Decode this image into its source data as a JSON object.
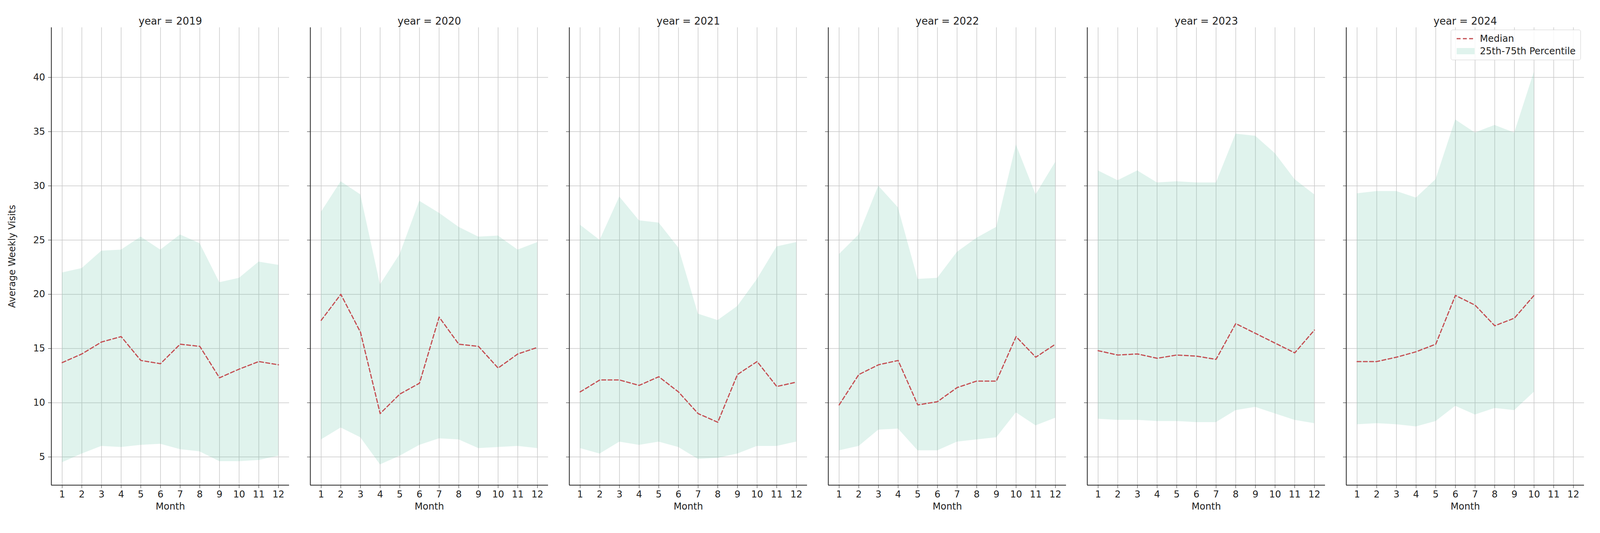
{
  "chart_data": [
    {
      "type": "line",
      "title": "year = 2019",
      "xlabel": "Month",
      "ylabel": "Average Weekly Visits",
      "x": [
        1,
        2,
        3,
        4,
        5,
        6,
        7,
        8,
        9,
        10,
        11,
        12
      ],
      "xlim": [
        0.45,
        12.55
      ],
      "xticks": [
        1,
        2,
        3,
        4,
        5,
        6,
        7,
        8,
        9,
        10,
        11,
        12
      ],
      "ylim": [
        2.4,
        44.6
      ],
      "yticks": [
        5,
        10,
        15,
        20,
        25,
        30,
        35,
        40
      ],
      "grid": true,
      "series": [
        {
          "name": "Median",
          "type": "line",
          "color": "#c44e52",
          "line_style": "dashed",
          "values": [
            13.7,
            14.5,
            15.6,
            16.1,
            13.9,
            13.6,
            15.4,
            15.2,
            12.3,
            13.1,
            13.8,
            13.5
          ]
        },
        {
          "name": "25th-75th Percentile",
          "type": "area",
          "color": "#66c2a5",
          "lower": [
            4.5,
            5.3,
            6.0,
            5.9,
            6.1,
            6.2,
            5.7,
            5.5,
            4.6,
            4.6,
            4.7,
            5.1
          ],
          "upper": [
            22.0,
            22.4,
            24.0,
            24.1,
            25.3,
            24.1,
            25.5,
            24.7,
            21.1,
            21.5,
            23.0,
            22.7
          ]
        }
      ]
    },
    {
      "type": "line",
      "title": "year = 2020",
      "xlabel": "Month",
      "tick_labels": "x",
      "x": [
        1,
        2,
        3,
        4,
        5,
        6,
        7,
        8,
        9,
        10,
        11,
        12
      ],
      "xlim": [
        0.45,
        12.55
      ],
      "xticks": [
        1,
        2,
        3,
        4,
        5,
        6,
        7,
        8,
        9,
        10,
        11,
        12
      ],
      "ylim": [
        2.4,
        44.6
      ],
      "yticks": [
        5,
        10,
        15,
        20,
        25,
        30,
        35,
        40
      ],
      "grid": true,
      "series": [
        {
          "name": "Median",
          "type": "line",
          "color": "#c44e52",
          "line_style": "dashed",
          "values": [
            17.6,
            20.0,
            16.5,
            9.0,
            10.8,
            11.8,
            17.9,
            15.4,
            15.2,
            13.2,
            14.5,
            15.1
          ]
        },
        {
          "name": "25th-75th Percentile",
          "type": "area",
          "color": "#66c2a5",
          "lower": [
            6.6,
            7.7,
            6.8,
            4.3,
            5.1,
            6.1,
            6.7,
            6.6,
            5.8,
            5.9,
            6.0,
            5.8
          ],
          "upper": [
            27.6,
            30.4,
            29.2,
            20.9,
            23.7,
            28.6,
            27.5,
            26.2,
            25.3,
            25.4,
            24.1,
            24.8
          ]
        }
      ]
    },
    {
      "type": "line",
      "title": "year = 2021",
      "xlabel": "Month",
      "tick_labels": "x",
      "x": [
        1,
        2,
        3,
        4,
        5,
        6,
        7,
        8,
        9,
        10,
        11,
        12
      ],
      "xlim": [
        0.45,
        12.55
      ],
      "xticks": [
        1,
        2,
        3,
        4,
        5,
        6,
        7,
        8,
        9,
        10,
        11,
        12
      ],
      "ylim": [
        2.4,
        44.6
      ],
      "yticks": [
        5,
        10,
        15,
        20,
        25,
        30,
        35,
        40
      ],
      "grid": true,
      "series": [
        {
          "name": "Median",
          "type": "line",
          "color": "#c44e52",
          "line_style": "dashed",
          "values": [
            11.0,
            12.1,
            12.1,
            11.6,
            12.4,
            11.0,
            9.0,
            8.2,
            12.6,
            13.8,
            11.5,
            11.9
          ]
        },
        {
          "name": "25th-75th Percentile",
          "type": "area",
          "color": "#66c2a5",
          "lower": [
            5.8,
            5.3,
            6.4,
            6.1,
            6.4,
            5.9,
            4.8,
            4.9,
            5.3,
            6.0,
            6.0,
            6.4
          ],
          "upper": [
            26.4,
            25.0,
            29.0,
            26.8,
            26.6,
            24.3,
            18.2,
            17.6,
            18.9,
            21.4,
            24.4,
            24.8
          ]
        }
      ]
    },
    {
      "type": "line",
      "title": "year = 2022",
      "xlabel": "Month",
      "tick_labels": "x",
      "x": [
        1,
        2,
        3,
        4,
        5,
        6,
        7,
        8,
        9,
        10,
        11,
        12
      ],
      "xlim": [
        0.45,
        12.55
      ],
      "xticks": [
        1,
        2,
        3,
        4,
        5,
        6,
        7,
        8,
        9,
        10,
        11,
        12
      ],
      "ylim": [
        2.4,
        44.6
      ],
      "yticks": [
        5,
        10,
        15,
        20,
        25,
        30,
        35,
        40
      ],
      "grid": true,
      "series": [
        {
          "name": "Median",
          "type": "line",
          "color": "#c44e52",
          "line_style": "dashed",
          "values": [
            9.8,
            12.6,
            13.5,
            13.9,
            9.8,
            10.1,
            11.4,
            12.0,
            12.0,
            16.1,
            14.2,
            15.4
          ]
        },
        {
          "name": "25th-75th Percentile",
          "type": "area",
          "color": "#66c2a5",
          "lower": [
            5.6,
            6.0,
            7.5,
            7.6,
            5.6,
            5.6,
            6.4,
            6.6,
            6.8,
            9.1,
            7.9,
            8.6
          ],
          "upper": [
            23.7,
            25.5,
            30.0,
            28.0,
            21.4,
            21.5,
            23.9,
            25.2,
            26.2,
            33.8,
            29.2,
            32.2
          ]
        }
      ]
    },
    {
      "type": "line",
      "title": "year = 2023",
      "xlabel": "Month",
      "tick_labels": "x",
      "x": [
        1,
        2,
        3,
        4,
        5,
        6,
        7,
        8,
        9,
        10,
        11,
        12
      ],
      "xlim": [
        0.45,
        12.55
      ],
      "xticks": [
        1,
        2,
        3,
        4,
        5,
        6,
        7,
        8,
        9,
        10,
        11,
        12
      ],
      "ylim": [
        2.4,
        44.6
      ],
      "yticks": [
        5,
        10,
        15,
        20,
        25,
        30,
        35,
        40
      ],
      "grid": true,
      "series": [
        {
          "name": "Median",
          "type": "line",
          "color": "#c44e52",
          "line_style": "dashed",
          "values": [
            14.8,
            14.4,
            14.5,
            14.1,
            14.4,
            14.3,
            14.0,
            17.3,
            16.4,
            15.5,
            14.6,
            16.7
          ]
        },
        {
          "name": "25th-75th Percentile",
          "type": "area",
          "color": "#66c2a5",
          "lower": [
            8.5,
            8.4,
            8.4,
            8.3,
            8.3,
            8.2,
            8.2,
            9.3,
            9.6,
            9.0,
            8.4,
            8.1
          ],
          "upper": [
            31.4,
            30.5,
            31.4,
            30.3,
            30.4,
            30.3,
            30.3,
            34.8,
            34.6,
            33.0,
            30.6,
            29.2
          ]
        }
      ]
    },
    {
      "type": "line",
      "title": "year = 2024",
      "xlabel": "Month",
      "tick_labels": "x",
      "legend": "upper right",
      "x": [
        1,
        2,
        3,
        4,
        5,
        6,
        7,
        8,
        9,
        10
      ],
      "xlim": [
        0.45,
        12.55
      ],
      "xticks": [
        1,
        2,
        3,
        4,
        5,
        6,
        7,
        8,
        9,
        10,
        11,
        12
      ],
      "ylim": [
        2.4,
        44.6
      ],
      "yticks": [
        5,
        10,
        15,
        20,
        25,
        30,
        35,
        40
      ],
      "grid": true,
      "series": [
        {
          "name": "Median",
          "type": "line",
          "color": "#c44e52",
          "line_style": "dashed",
          "values": [
            13.8,
            13.8,
            14.2,
            14.7,
            15.4,
            19.9,
            19.0,
            17.1,
            17.8,
            19.9
          ]
        },
        {
          "name": "25th-75th Percentile",
          "type": "area",
          "color": "#66c2a5",
          "lower": [
            8.0,
            8.1,
            8.0,
            7.8,
            8.3,
            9.7,
            8.9,
            9.5,
            9.3,
            11.0
          ],
          "upper": [
            29.3,
            29.5,
            29.5,
            28.9,
            30.6,
            36.1,
            34.9,
            35.6,
            34.9,
            40.5
          ]
        }
      ]
    }
  ]
}
